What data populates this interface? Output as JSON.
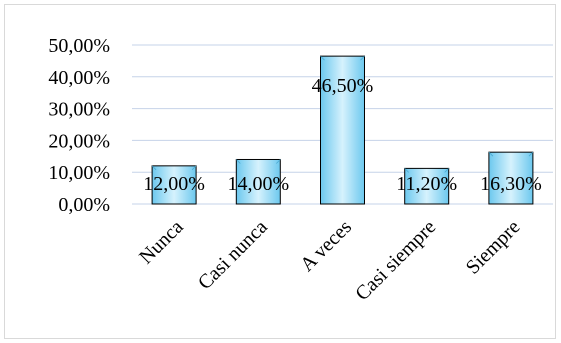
{
  "chart_data": {
    "type": "bar",
    "categories": [
      "Nunca",
      "Casi nunca",
      "A veces",
      "Casi siempre",
      "Siempre"
    ],
    "values": [
      12.0,
      14.0,
      46.5,
      11.2,
      16.3
    ],
    "data_labels": [
      "12,00%",
      "14,00%",
      "46,50%",
      "11,20%",
      "16,30%"
    ],
    "y_ticks": [
      "0,00%",
      "10,00%",
      "20,00%",
      "30,00%",
      "40,00%",
      "50,00%"
    ],
    "ylim": [
      0,
      50
    ],
    "grid": true,
    "legend": false,
    "colors": {
      "bar_light": "#d4f1fc",
      "bar_mid": "#8fd8f5",
      "bar_dark": "#5fc3ec",
      "bar_border": "#000000",
      "grid": "#c6d3e8"
    }
  }
}
